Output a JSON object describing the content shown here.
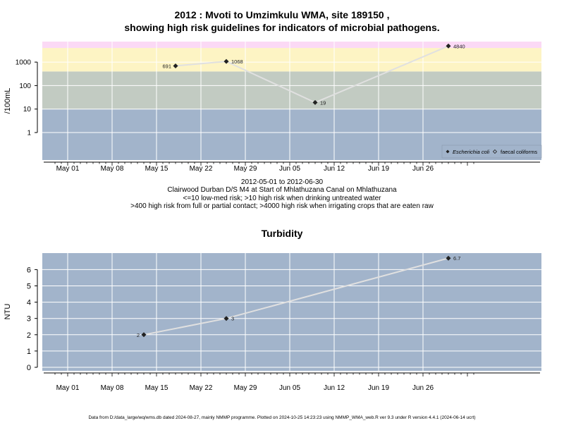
{
  "title_line1": "2012 : Mvoti to Umzimkulu WMA, site 189150 ,",
  "title_line2": "showing high risk guidelines for indicators of microbial pathogens.",
  "info": {
    "date_range": "2012-05-01 to 2012-06-30",
    "site_desc": "Clairwood Durban D/S M4 at Start of Mhlathuzana Canal on Mhlathuzana",
    "risk_line1": "<=10 low-med risk; >10 high risk when drinking untreated water",
    "risk_line2": ">400 high risk from full or partial contact; >4000 high risk when irrigating crops that are eaten raw"
  },
  "footer": "Data from D:/data_large/wq/wms.db dated 2024-08-27, mainly NMMP programme. Plotted on 2024-10-25 14:23:23 using NMMP_WMA_web.R ver 9.3 under R version 4.4.1 (2024-06-14 ucrt)",
  "colors": {
    "band_low": "#a2b4cb",
    "band_mid": "#c2cbc2",
    "band_high": "#fdf4c4",
    "band_top": "#fbd9f5",
    "turb_bg": "#a2b4cb",
    "line": "#e0e0e0",
    "grid": "#ffffff"
  },
  "chart_data": [
    {
      "type": "line",
      "title": "",
      "ylabel": "/100mL",
      "y_scale": "log",
      "x_ticks": [
        "May 01",
        "May 08",
        "May 15",
        "May 22",
        "May 29",
        "Jun 05",
        "Jun 12",
        "Jun 19",
        "Jun 26"
      ],
      "y_ticks": [
        "1",
        "10",
        "100",
        "1000"
      ],
      "y_tick_values": [
        1,
        10,
        100,
        1000
      ],
      "risk_thresholds": [
        10,
        400,
        4000
      ],
      "series": [
        {
          "name": "Escherichia coli",
          "marker": "filled-diamond",
          "x": [
            "2012-05-18",
            "2012-05-26",
            "2012-06-09",
            "2012-06-30"
          ],
          "y": [
            691,
            1068,
            19,
            4840
          ],
          "labels": [
            "691",
            "1068",
            "19",
            "4840"
          ]
        }
      ],
      "legend": [
        "Escherichia coli",
        "faecal coliforms"
      ],
      "legend_position": "bottom-right"
    },
    {
      "type": "line",
      "title": "Turbidity",
      "ylabel": "NTU",
      "x_ticks": [
        "May 01",
        "May 08",
        "May 15",
        "May 22",
        "May 29",
        "Jun 05",
        "Jun 12",
        "Jun 19",
        "Jun 26"
      ],
      "y_ticks": [
        "0",
        "1",
        "2",
        "3",
        "4",
        "5",
        "6"
      ],
      "y_tick_values": [
        0,
        1,
        2,
        3,
        4,
        5,
        6
      ],
      "series": [
        {
          "x": [
            "2012-05-13",
            "2012-05-26",
            "2012-06-30"
          ],
          "y": [
            2,
            3,
            6.7
          ],
          "labels": [
            "2",
            "3",
            "6.7"
          ]
        }
      ]
    }
  ]
}
